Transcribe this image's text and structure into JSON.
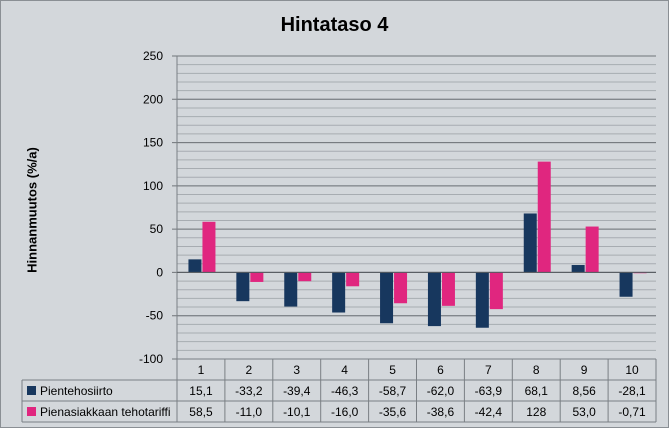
{
  "chart_data": {
    "type": "bar",
    "title": "Hintataso 4",
    "ylabel": "Hinnanmuutos (%/a)",
    "xlabel": "",
    "ylim": [
      -100,
      250
    ],
    "y_ticks": [
      -100,
      -50,
      0,
      50,
      100,
      150,
      200,
      250
    ],
    "y_tick_labels": [
      "-100",
      "-50",
      "0",
      "50",
      "100",
      "150",
      "200",
      "250"
    ],
    "minor_grid_step": 10,
    "grid": true,
    "legend": "data-table-left",
    "categories": [
      "1",
      "2",
      "3",
      "4",
      "5",
      "6",
      "7",
      "8",
      "9",
      "10"
    ],
    "series": [
      {
        "name": "Pientehosiirto",
        "color": "#17375e",
        "values": [
          15.1,
          -33.2,
          -39.4,
          -46.3,
          -58.7,
          -62.0,
          -63.9,
          68.1,
          8.56,
          -28.1
        ],
        "labels": [
          "15,1",
          "-33,2",
          "-39,4",
          "-46,3",
          "-58,7",
          "-62,0",
          "-63,9",
          "68,1",
          "8,56",
          "-28,1"
        ]
      },
      {
        "name": "Pienasiakkaan tehotariffi",
        "color": "#e0267f",
        "values": [
          58.5,
          -11.0,
          -10.1,
          -16.0,
          -35.6,
          -38.6,
          -42.4,
          128,
          53.0,
          -0.71
        ],
        "labels": [
          "58,5",
          "-11,0",
          "-10,1",
          "-16,0",
          "-35,6",
          "-38,6",
          "-42,4",
          "128",
          "53,0",
          "-0,71"
        ]
      }
    ]
  }
}
